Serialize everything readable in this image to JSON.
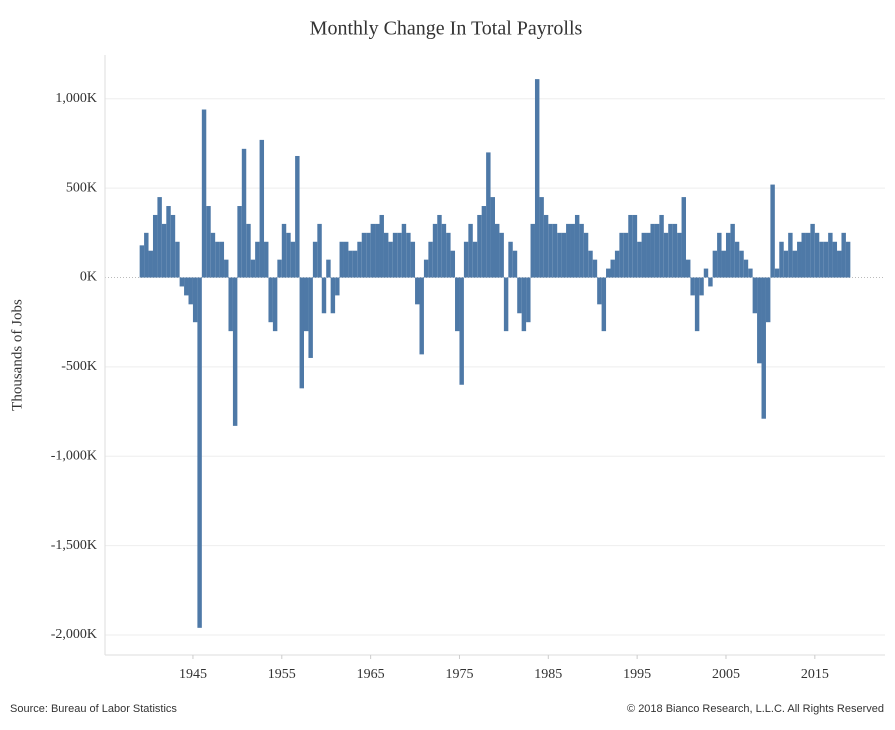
{
  "chart_data": {
    "type": "bar",
    "title": "Monthly Change In Total Payrolls",
    "y_label": "Thousands of Jobs",
    "source": "Source: Bureau of Labor Statistics",
    "copyright": "© 2018 Bianco Research, L.L.C. All Rights Reserved",
    "color": "#4e79a7",
    "grid": true,
    "xlim": [
      1935.1,
      2022.9
    ],
    "xticks": [
      1945,
      1955,
      1965,
      1975,
      1985,
      1995,
      2005,
      2015
    ],
    "ylim": [
      -2112,
      1245
    ],
    "yticks": [
      {
        "value": 1000,
        "label": "1,000K"
      },
      {
        "value": 500,
        "label": "500K"
      },
      {
        "value": 0,
        "label": "0K"
      },
      {
        "value": -500,
        "label": "-500K"
      },
      {
        "value": -1000,
        "label": "-1,000K"
      },
      {
        "value": -1500,
        "label": "-1,500K"
      },
      {
        "value": -2000,
        "label": "-2,000K"
      }
    ],
    "x": [
      1939,
      1939.5,
      1940,
      1940.5,
      1941,
      1941.5,
      1942,
      1942.5,
      1943,
      1943.5,
      1944,
      1944.5,
      1945,
      1945.5,
      1946,
      1946.5,
      1947,
      1947.5,
      1948,
      1948.5,
      1949,
      1949.5,
      1950,
      1950.5,
      1951,
      1951.5,
      1952,
      1952.5,
      1953,
      1953.5,
      1954,
      1954.5,
      1955,
      1955.5,
      1956,
      1956.5,
      1957,
      1957.5,
      1958,
      1958.5,
      1959,
      1959.5,
      1960,
      1960.5,
      1961,
      1961.5,
      1962,
      1962.5,
      1963,
      1963.5,
      1964,
      1964.5,
      1965,
      1965.5,
      1966,
      1966.5,
      1967,
      1967.5,
      1968,
      1968.5,
      1969,
      1969.5,
      1970,
      1970.5,
      1971,
      1971.5,
      1972,
      1972.5,
      1973,
      1973.5,
      1974,
      1974.5,
      1975,
      1975.5,
      1976,
      1976.5,
      1977,
      1977.5,
      1978,
      1978.5,
      1979,
      1979.5,
      1980,
      1980.5,
      1981,
      1981.5,
      1982,
      1982.5,
      1983,
      1983.5,
      1984,
      1984.5,
      1985,
      1985.5,
      1986,
      1986.5,
      1987,
      1987.5,
      1988,
      1988.5,
      1989,
      1989.5,
      1990,
      1990.5,
      1991,
      1991.5,
      1992,
      1992.5,
      1993,
      1993.5,
      1994,
      1994.5,
      1995,
      1995.5,
      1996,
      1996.5,
      1997,
      1997.5,
      1998,
      1998.5,
      1999,
      1999.5,
      2000,
      2000.5,
      2001,
      2001.5,
      2002,
      2002.5,
      2003,
      2003.5,
      2004,
      2004.5,
      2005,
      2005.5,
      2006,
      2006.5,
      2007,
      2007.5,
      2008,
      2008.5,
      2009,
      2009.5,
      2010,
      2010.5,
      2011,
      2011.5,
      2012,
      2012.5,
      2013,
      2013.5,
      2014,
      2014.5,
      2015,
      2015.5,
      2016,
      2016.5,
      2017,
      2017.5,
      2018,
      2018.5
    ],
    "values": [
      180,
      250,
      150,
      350,
      450,
      300,
      400,
      350,
      200,
      -50,
      -100,
      -150,
      -250,
      -1960,
      940,
      400,
      250,
      200,
      200,
      100,
      -300,
      -830,
      400,
      720,
      300,
      100,
      200,
      770,
      200,
      -250,
      -300,
      100,
      300,
      250,
      200,
      680,
      -620,
      -300,
      -450,
      200,
      300,
      -200,
      100,
      -200,
      -100,
      200,
      200,
      150,
      150,
      200,
      250,
      250,
      300,
      300,
      350,
      250,
      200,
      250,
      250,
      300,
      250,
      200,
      -150,
      -430,
      100,
      200,
      300,
      350,
      300,
      250,
      150,
      -300,
      -600,
      200,
      300,
      200,
      350,
      400,
      700,
      450,
      300,
      250,
      -300,
      200,
      150,
      -200,
      -300,
      -250,
      300,
      1110,
      450,
      350,
      300,
      300,
      250,
      250,
      300,
      300,
      350,
      300,
      250,
      150,
      100,
      -150,
      -300,
      50,
      100,
      150,
      250,
      250,
      350,
      350,
      200,
      250,
      250,
      300,
      300,
      350,
      250,
      300,
      300,
      250,
      450,
      100,
      -100,
      -300,
      -100,
      50,
      -50,
      150,
      250,
      150,
      250,
      300,
      200,
      150,
      100,
      50,
      -200,
      -480,
      -790,
      -250,
      520,
      50,
      200,
      150,
      250,
      150,
      200,
      250,
      250,
      300,
      250,
      200,
      200,
      250,
      200,
      150,
      250,
      200
    ]
  }
}
